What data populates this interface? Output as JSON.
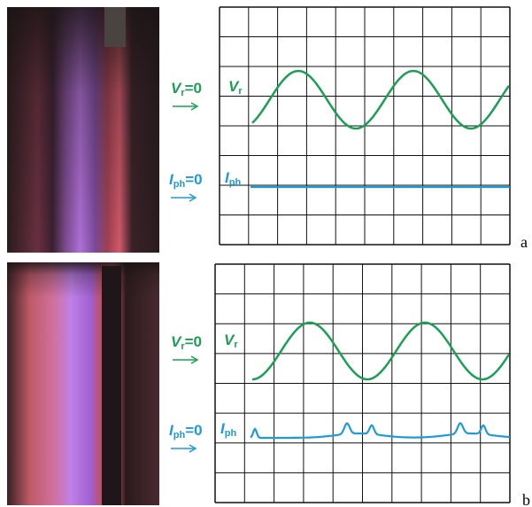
{
  "panels": [
    {
      "label": "a",
      "vr": {
        "zero_main": "V",
        "zero_sub": "r",
        "zero_eq": "=0",
        "trace_main": "V",
        "trace_sub": "r"
      },
      "iph": {
        "zero_main": "I",
        "zero_sub": "ph",
        "zero_eq": "=0",
        "trace_main": "I",
        "trace_sub": "ph"
      }
    },
    {
      "label": "b",
      "vr": {
        "zero_main": "V",
        "zero_sub": "r",
        "zero_eq": "=0",
        "trace_main": "V",
        "trace_sub": "r"
      },
      "iph": {
        "zero_main": "I",
        "zero_sub": "ph",
        "zero_eq": "=0",
        "trace_main": "I",
        "trace_sub": "ph"
      }
    }
  ]
}
